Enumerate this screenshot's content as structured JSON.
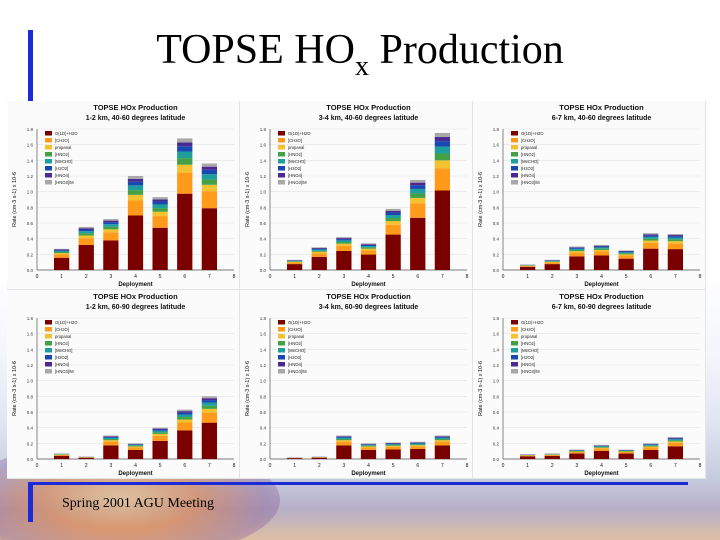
{
  "slide": {
    "title_main": "TOPSE HO",
    "title_sub": "x",
    "title_end": " Production",
    "footer": "Spring 2001 AGU Meeting"
  },
  "colors": {
    "accent_bar": "#1d2bd6",
    "species": [
      "#7a0000",
      "#ff9a1a",
      "#f2c230",
      "#43a047",
      "#1f9e9e",
      "#1848b0",
      "#4a2a90",
      "#a8a8a8"
    ]
  },
  "chart_data": [
    {
      "type": "bar",
      "title": "TOPSE HOx Production",
      "subtitle": "1-2 km, 40-60 degrees latitude",
      "xlabel": "Deployment",
      "ylabel": "Rate (cm-3 s-1) x 10-6",
      "ylim": [
        0,
        1.8
      ],
      "yticks": [
        "0.0",
        "0.2",
        "0.4",
        "0.6",
        "0.8",
        "1.0",
        "1.2",
        "1.4",
        "1.6",
        "1.8"
      ],
      "xticks": [
        "0",
        "1",
        "2",
        "3",
        "4",
        "5",
        "6",
        "7",
        "8"
      ],
      "categories": [
        "1",
        "2",
        "3",
        "4",
        "5",
        "6",
        "7"
      ],
      "totals": [
        0.27,
        0.55,
        0.65,
        1.2,
        0.93,
        1.68,
        1.36
      ],
      "legend": [
        "O(1D)+H2O",
        "[CH2O]",
        "propanal",
        "[HNO2]",
        "[MeCHO]",
        "[H2O2]",
        "[HNO4]",
        "[HNO3]/M"
      ]
    },
    {
      "type": "bar",
      "title": "TOPSE HOx Production",
      "subtitle": "3-4 km, 40-60 degrees latitude",
      "xlabel": "Deployment",
      "ylabel": "Rate (cm-3 s-1) x 10-6",
      "ylim": [
        0,
        1.8
      ],
      "yticks": [
        "0.0",
        "0.2",
        "0.4",
        "0.6",
        "0.8",
        "1.0",
        "1.2",
        "1.4",
        "1.6",
        "1.8"
      ],
      "xticks": [
        "0",
        "1",
        "2",
        "3",
        "4",
        "5",
        "6",
        "7",
        "8"
      ],
      "categories": [
        "1",
        "2",
        "3",
        "4",
        "5",
        "6",
        "7"
      ],
      "totals": [
        0.13,
        0.29,
        0.42,
        0.34,
        0.78,
        1.15,
        1.75
      ],
      "legend": [
        "O(1D)+H2O",
        "[CH2O]",
        "propanal",
        "[HNO2]",
        "[MeCHO]",
        "[H2O2]",
        "[HNO4]",
        "[HNO3]/M"
      ]
    },
    {
      "type": "bar",
      "title": "TOPSE HOx Production",
      "subtitle": "6-7 km, 40-60 degrees latitude",
      "xlabel": "Deployment",
      "ylabel": "Rate (cm-3 s-1) x 10-6",
      "ylim": [
        0,
        1.8
      ],
      "yticks": [
        "0.0",
        "0.2",
        "0.4",
        "0.6",
        "0.8",
        "1.0",
        "1.2",
        "1.4",
        "1.6",
        "1.8"
      ],
      "xticks": [
        "0",
        "1",
        "2",
        "3",
        "4",
        "5",
        "6",
        "7",
        "8"
      ],
      "categories": [
        "1",
        "2",
        "3",
        "4",
        "5",
        "6",
        "7"
      ],
      "totals": [
        0.07,
        0.13,
        0.3,
        0.32,
        0.25,
        0.47,
        0.46
      ],
      "legend": [
        "O(1D)+H2O",
        "[CH2O]",
        "propanal",
        "[HNO2]",
        "[MeCHO]",
        "[H2O2]",
        "[HNO4]",
        "[HNO3]/M"
      ]
    },
    {
      "type": "bar",
      "title": "TOPSE HOx Production",
      "subtitle": "1-2 km, 60-90 degrees latitude",
      "xlabel": "Deployment",
      "ylabel": "Rate (cm-3 s-1) x 10-6",
      "ylim": [
        0,
        1.8
      ],
      "yticks": [
        "0.0",
        "0.2",
        "0.4",
        "0.6",
        "0.8",
        "1.0",
        "1.2",
        "1.4",
        "1.6",
        "1.8"
      ],
      "xticks": [
        "0",
        "1",
        "2",
        "3",
        "4",
        "5",
        "6",
        "7",
        "8"
      ],
      "categories": [
        "1",
        "2",
        "3",
        "4",
        "5",
        "6",
        "7"
      ],
      "totals": [
        0.07,
        0.03,
        0.3,
        0.2,
        0.4,
        0.63,
        0.8
      ],
      "legend": [
        "O(1D)+H2O",
        "[CH2O]",
        "propanal",
        "[HNO2]",
        "[MeCHO]",
        "[H2O2]",
        "[HNO4]",
        "[HNO3]/M"
      ]
    },
    {
      "type": "bar",
      "title": "TOPSE HOx Production",
      "subtitle": "3-4 km, 60-90 degrees latitude",
      "xlabel": "Deployment",
      "ylabel": "Rate (cm-3 s-1) x 10-6",
      "ylim": [
        0,
        1.8
      ],
      "yticks": [
        "0.0",
        "0.2",
        "0.4",
        "0.6",
        "0.8",
        "1.0",
        "1.2",
        "1.4",
        "1.6",
        "1.8"
      ],
      "xticks": [
        "0",
        "1",
        "2",
        "3",
        "4",
        "5",
        "6",
        "7",
        "8"
      ],
      "categories": [
        "1",
        "2",
        "3",
        "4",
        "5",
        "6",
        "7"
      ],
      "totals": [
        0.02,
        0.03,
        0.3,
        0.2,
        0.21,
        0.22,
        0.3
      ],
      "legend": [
        "O(1D)+H2O",
        "[CH2O]",
        "propanal",
        "[HNO2]",
        "[MeCHO]",
        "[H2O2]",
        "[HNO4]",
        "[HNO3]/M"
      ]
    },
    {
      "type": "bar",
      "title": "TOPSE HOx Production",
      "subtitle": "6-7 km, 60-90 degrees latitude",
      "xlabel": "Deployment",
      "ylabel": "Rate (cm-3 s-1) x 10-6",
      "ylim": [
        0,
        1.8
      ],
      "yticks": [
        "0.0",
        "0.2",
        "0.4",
        "0.6",
        "0.8",
        "1.0",
        "1.2",
        "1.4",
        "1.6",
        "1.8"
      ],
      "xticks": [
        "0",
        "1",
        "2",
        "3",
        "4",
        "5",
        "6",
        "7",
        "8"
      ],
      "categories": [
        "1",
        "2",
        "3",
        "4",
        "5",
        "6",
        "7"
      ],
      "totals": [
        0.06,
        0.07,
        0.12,
        0.18,
        0.12,
        0.2,
        0.28
      ],
      "legend": [
        "O(1D)+H2O",
        "[CH2O]",
        "propanal",
        "[HNO2]",
        "[MeCHO]",
        "[H2O2]",
        "[HNO4]",
        "[HNO3]/M"
      ]
    }
  ]
}
